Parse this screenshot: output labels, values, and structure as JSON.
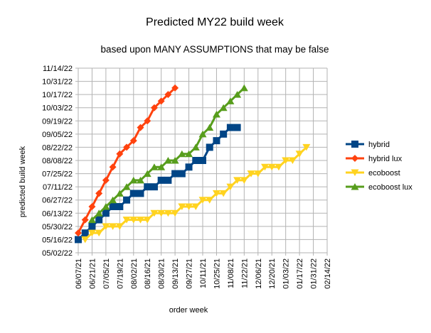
{
  "chart_data": {
    "type": "line",
    "title": "Predicted MY22 build week",
    "subtitle": "based upon MANY ASSUMPTIONS that may be false",
    "xlabel": "order week",
    "ylabel": "predicted build week",
    "x_ticks": [
      "06/07/21",
      "06/21/21",
      "07/05/21",
      "07/19/21",
      "08/02/21",
      "08/16/21",
      "08/30/21",
      "09/13/21",
      "09/27/21",
      "10/11/21",
      "10/25/21",
      "11/08/21",
      "11/22/21",
      "12/06/21",
      "12/20/21",
      "01/03/22",
      "01/17/22",
      "01/31/22",
      "02/14/22"
    ],
    "y_ticks": [
      "05/02/22",
      "05/16/22",
      "05/30/22",
      "06/13/22",
      "06/27/22",
      "07/11/22",
      "07/25/22",
      "08/08/22",
      "08/22/22",
      "09/05/22",
      "09/19/22",
      "10/03/22",
      "10/17/22",
      "10/31/22",
      "11/14/22"
    ],
    "xlim": [
      "06/07/21",
      "02/14/22"
    ],
    "ylim": [
      "05/02/22",
      "11/14/22"
    ],
    "grid": true,
    "legend_position": "right",
    "series": [
      {
        "name": "hybrid",
        "color": "#004586",
        "marker": "square",
        "points": [
          [
            "06/07/21",
            "05/16/22"
          ],
          [
            "06/14/21",
            "05/23/22"
          ],
          [
            "06/21/21",
            "05/30/22"
          ],
          [
            "06/28/21",
            "06/06/22"
          ],
          [
            "07/05/21",
            "06/13/22"
          ],
          [
            "07/12/21",
            "06/20/22"
          ],
          [
            "07/19/21",
            "06/20/22"
          ],
          [
            "07/26/21",
            "06/27/22"
          ],
          [
            "08/02/21",
            "07/04/22"
          ],
          [
            "08/09/21",
            "07/04/22"
          ],
          [
            "08/16/21",
            "07/11/22"
          ],
          [
            "08/23/21",
            "07/11/22"
          ],
          [
            "08/30/21",
            "07/18/22"
          ],
          [
            "09/06/21",
            "07/18/22"
          ],
          [
            "09/13/21",
            "07/25/22"
          ],
          [
            "09/20/21",
            "07/25/22"
          ],
          [
            "09/27/21",
            "08/01/22"
          ],
          [
            "10/04/21",
            "08/08/22"
          ],
          [
            "10/11/21",
            "08/08/22"
          ],
          [
            "10/18/21",
            "08/22/22"
          ],
          [
            "10/25/21",
            "08/29/22"
          ],
          [
            "11/01/21",
            "09/05/22"
          ],
          [
            "11/08/21",
            "09/12/22"
          ],
          [
            "11/15/21",
            "09/12/22"
          ]
        ]
      },
      {
        "name": "hybrid lux",
        "color": "#ff420e",
        "marker": "diamond",
        "points": [
          [
            "06/07/21",
            "05/23/22"
          ],
          [
            "06/14/21",
            "06/06/22"
          ],
          [
            "06/21/21",
            "06/20/22"
          ],
          [
            "06/28/21",
            "07/04/22"
          ],
          [
            "07/05/21",
            "07/18/22"
          ],
          [
            "07/12/21",
            "08/01/22"
          ],
          [
            "07/19/21",
            "08/15/22"
          ],
          [
            "07/26/21",
            "08/22/22"
          ],
          [
            "08/02/21",
            "08/29/22"
          ],
          [
            "08/09/21",
            "09/12/22"
          ],
          [
            "08/16/21",
            "09/19/22"
          ],
          [
            "08/23/21",
            "10/03/22"
          ],
          [
            "08/30/21",
            "10/10/22"
          ],
          [
            "09/06/21",
            "10/17/22"
          ],
          [
            "09/13/21",
            "10/24/22"
          ]
        ]
      },
      {
        "name": "ecoboost",
        "color": "#ffd320",
        "marker": "triangle-down",
        "points": [
          [
            "06/14/21",
            "05/16/22"
          ],
          [
            "06/21/21",
            "05/23/22"
          ],
          [
            "06/28/21",
            "05/23/22"
          ],
          [
            "07/05/21",
            "05/30/22"
          ],
          [
            "07/12/21",
            "05/30/22"
          ],
          [
            "07/19/21",
            "05/30/22"
          ],
          [
            "07/26/21",
            "06/06/22"
          ],
          [
            "08/02/21",
            "06/06/22"
          ],
          [
            "08/09/21",
            "06/06/22"
          ],
          [
            "08/16/21",
            "06/06/22"
          ],
          [
            "08/23/21",
            "06/13/22"
          ],
          [
            "08/30/21",
            "06/13/22"
          ],
          [
            "09/06/21",
            "06/13/22"
          ],
          [
            "09/13/21",
            "06/13/22"
          ],
          [
            "09/20/21",
            "06/20/22"
          ],
          [
            "09/27/21",
            "06/20/22"
          ],
          [
            "10/04/21",
            "06/20/22"
          ],
          [
            "10/11/21",
            "06/27/22"
          ],
          [
            "10/18/21",
            "06/27/22"
          ],
          [
            "10/25/21",
            "07/04/22"
          ],
          [
            "11/01/21",
            "07/04/22"
          ],
          [
            "11/08/21",
            "07/11/22"
          ],
          [
            "11/15/21",
            "07/18/22"
          ],
          [
            "11/22/21",
            "07/18/22"
          ],
          [
            "11/29/21",
            "07/25/22"
          ],
          [
            "12/06/21",
            "07/25/22"
          ],
          [
            "12/13/21",
            "08/01/22"
          ],
          [
            "12/20/21",
            "08/01/22"
          ],
          [
            "12/27/21",
            "08/01/22"
          ],
          [
            "01/03/22",
            "08/08/22"
          ],
          [
            "01/10/22",
            "08/08/22"
          ],
          [
            "01/17/22",
            "08/15/22"
          ],
          [
            "01/24/22",
            "08/22/22"
          ]
        ]
      },
      {
        "name": "ecoboost lux",
        "color": "#579d1c",
        "marker": "triangle-up",
        "points": [
          [
            "06/21/21",
            "06/06/22"
          ],
          [
            "06/28/21",
            "06/13/22"
          ],
          [
            "07/05/21",
            "06/20/22"
          ],
          [
            "07/12/21",
            "06/27/22"
          ],
          [
            "07/19/21",
            "07/04/22"
          ],
          [
            "07/26/21",
            "07/11/22"
          ],
          [
            "08/02/21",
            "07/18/22"
          ],
          [
            "08/09/21",
            "07/18/22"
          ],
          [
            "08/16/21",
            "07/25/22"
          ],
          [
            "08/23/21",
            "08/01/22"
          ],
          [
            "08/30/21",
            "08/01/22"
          ],
          [
            "09/06/21",
            "08/08/22"
          ],
          [
            "09/13/21",
            "08/08/22"
          ],
          [
            "09/20/21",
            "08/15/22"
          ],
          [
            "09/27/21",
            "08/15/22"
          ],
          [
            "10/04/21",
            "08/22/22"
          ],
          [
            "10/11/21",
            "09/05/22"
          ],
          [
            "10/18/21",
            "09/12/22"
          ],
          [
            "10/25/21",
            "09/26/22"
          ],
          [
            "11/01/21",
            "10/03/22"
          ],
          [
            "11/08/21",
            "10/10/22"
          ],
          [
            "11/15/21",
            "10/17/22"
          ],
          [
            "11/22/21",
            "10/24/22"
          ]
        ]
      }
    ]
  }
}
